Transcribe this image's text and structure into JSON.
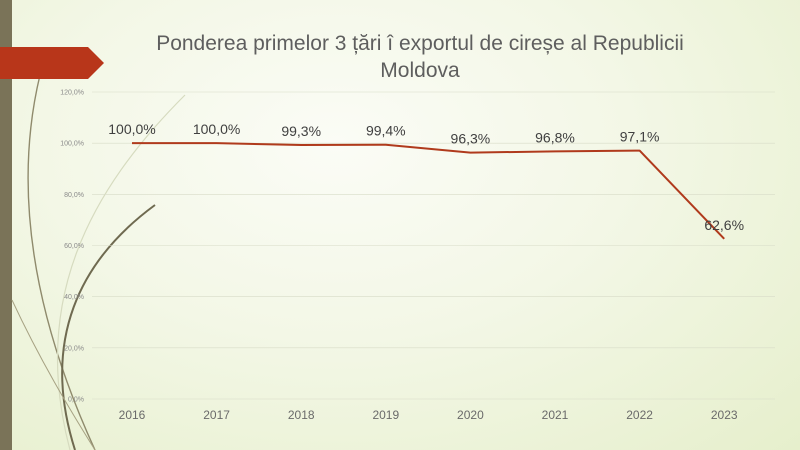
{
  "slide": {
    "title_line1": "Ponderea primelor 3 țări î exportul de cireșe al Republicii",
    "title_line2": "Moldova"
  },
  "colors": {
    "line": "#b03a1c",
    "banner": "#b8361a",
    "left_bar": "#7a7358",
    "grid": "#d8dcc8"
  },
  "chart_data": {
    "type": "line",
    "categories": [
      "2016",
      "2017",
      "2018",
      "2019",
      "2020",
      "2021",
      "2022",
      "2023"
    ],
    "series": [
      {
        "values": [
          100.0,
          100.0,
          99.3,
          99.4,
          96.3,
          96.8,
          97.1,
          62.6
        ],
        "labels": [
          "100,0%",
          "100,0%",
          "99,3%",
          "99,4%",
          "96,3%",
          "96,8%",
          "97,1%",
          "62,6%"
        ]
      }
    ],
    "y_ticks": [
      0,
      20,
      40,
      60,
      80,
      100,
      120
    ],
    "y_tick_labels": [
      "0,0%",
      "20,0%",
      "40,0%",
      "60,0%",
      "80,0%",
      "100,0%",
      "120,0%"
    ],
    "ylim": [
      0,
      120
    ],
    "grid": true,
    "legend": "none"
  }
}
